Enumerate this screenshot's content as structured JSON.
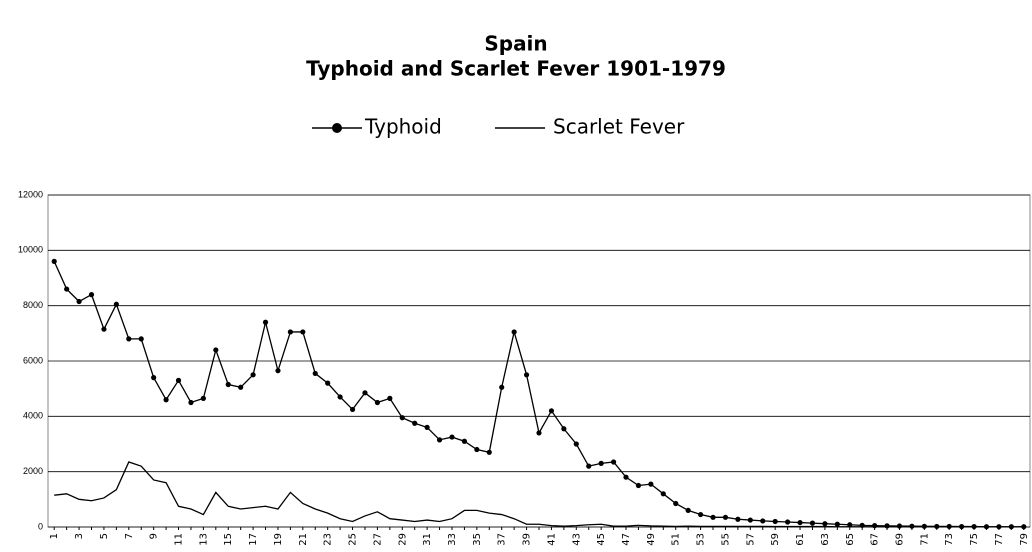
{
  "chart_data": {
    "type": "line",
    "title": "Spain",
    "subtitle": "Typhoid and Scarlet Fever 1901-1979",
    "categories": [
      "1",
      null,
      "3",
      null,
      "5",
      null,
      "7",
      null,
      "9",
      null,
      "11",
      null,
      "13",
      null,
      "15",
      null,
      "17",
      null,
      "19",
      null,
      "21",
      null,
      "23",
      null,
      "25",
      null,
      "27",
      null,
      "29",
      null,
      "31",
      null,
      "33",
      null,
      "35",
      null,
      "37",
      null,
      "39",
      null,
      "41",
      null,
      "43",
      null,
      "45",
      null,
      "47",
      null,
      "49",
      null,
      "51",
      null,
      "53",
      null,
      "55",
      null,
      "57",
      null,
      "59",
      null,
      "61",
      null,
      "63",
      null,
      "65",
      null,
      "67",
      null,
      "69",
      null,
      "71",
      null,
      "73",
      null,
      "75",
      null,
      "77",
      null,
      "79"
    ],
    "series": [
      {
        "name": "Typhoid",
        "color": "#000000",
        "marker": "circle",
        "values": [
          9600,
          8600,
          8150,
          8400,
          7150,
          8050,
          6800,
          6800,
          5400,
          4600,
          5300,
          4500,
          4650,
          6400,
          5150,
          5050,
          5500,
          7400,
          5650,
          7050,
          7050,
          5550,
          5200,
          4700,
          4250,
          4850,
          4500,
          4650,
          3950,
          3750,
          3600,
          3150,
          3250,
          3100,
          2800,
          2700,
          5050,
          7050,
          5500,
          3400,
          4200,
          3550,
          3000,
          2200,
          2300,
          2350,
          1800,
          1500,
          1550,
          1200,
          850,
          600,
          450,
          350,
          350,
          280,
          250,
          220,
          200,
          180,
          160,
          140,
          120,
          100,
          80,
          60,
          50,
          40,
          35,
          30,
          25,
          20,
          20,
          15,
          15,
          10,
          10,
          10,
          10
        ]
      },
      {
        "name": "Scarlet Fever",
        "color": "#000000",
        "marker": "none",
        "values": [
          1150,
          1200,
          1000,
          950,
          1050,
          1350,
          2350,
          2200,
          1700,
          1600,
          750,
          650,
          450,
          1250,
          750,
          650,
          700,
          750,
          650,
          1250,
          850,
          650,
          500,
          300,
          200,
          400,
          550,
          300,
          250,
          200,
          250,
          200,
          300,
          600,
          600,
          500,
          450,
          300,
          100,
          100,
          50,
          30,
          50,
          80,
          100,
          30,
          30,
          60,
          40,
          30,
          20,
          30,
          20,
          20,
          20,
          20,
          20,
          20,
          15,
          15,
          15,
          15,
          15,
          10,
          10,
          10,
          10,
          10,
          10,
          10,
          10,
          5,
          5,
          5,
          5,
          5,
          5,
          5,
          5
        ]
      }
    ],
    "ylim": [
      0,
      12000
    ],
    "yticks": [
      0,
      2000,
      4000,
      6000,
      8000,
      10000,
      12000
    ],
    "grid": true,
    "legend": "top"
  }
}
